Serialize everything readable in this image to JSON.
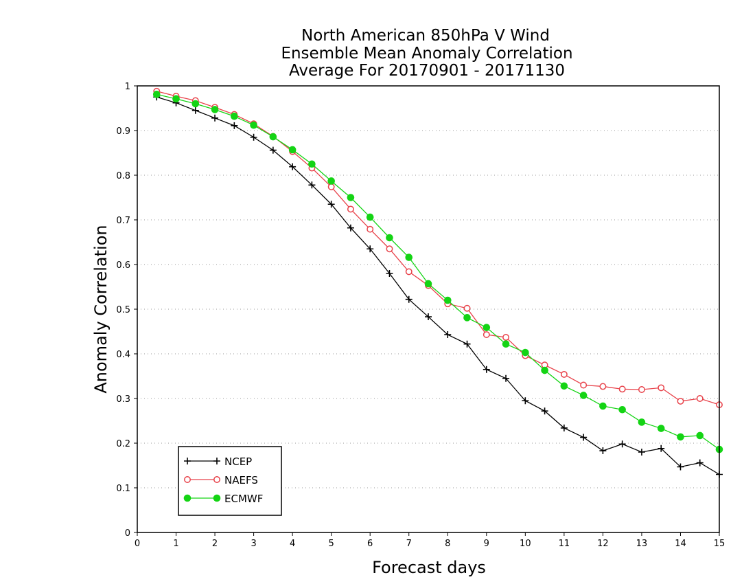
{
  "chart_data": {
    "type": "line",
    "title": [
      "North American 850hPa V Wind",
      "Ensemble Mean Anomaly Correlation",
      "Average For 20170901 - 20171130"
    ],
    "xlabel": "Forecast days",
    "ylabel": "Anomaly Correlation",
    "xlim": [
      0,
      15
    ],
    "ylim": [
      0,
      1
    ],
    "xticks": [
      "0",
      "1",
      "2",
      "3",
      "4",
      "5",
      "6",
      "7",
      "8",
      "9",
      "10",
      "11",
      "12",
      "13",
      "14",
      "15"
    ],
    "yticks": [
      "0",
      "0.1",
      "0.2",
      "0.3",
      "0.4",
      "0.5",
      "0.6",
      "0.7",
      "0.8",
      "0.9",
      "1"
    ],
    "grid": "horizontal dotted",
    "legend_position": "bottom-left",
    "x": [
      0.5,
      1,
      1.5,
      2,
      2.5,
      3,
      3.5,
      4,
      4.5,
      5,
      5.5,
      6,
      6.5,
      7,
      7.5,
      8,
      8.5,
      9,
      9.5,
      10,
      10.5,
      11,
      11.5,
      12,
      12.5,
      13,
      13.5,
      14,
      14.5,
      15
    ],
    "series": [
      {
        "name": "NCEP",
        "color": "#000000",
        "marker": "plus",
        "values": [
          0.975,
          0.962,
          0.945,
          0.928,
          0.911,
          0.885,
          0.856,
          0.819,
          0.778,
          0.735,
          0.682,
          0.635,
          0.58,
          0.522,
          0.483,
          0.443,
          0.422,
          0.365,
          0.345,
          0.295,
          0.272,
          0.234,
          0.213,
          0.183,
          0.198,
          0.18,
          0.188,
          0.147,
          0.156,
          0.13
        ]
      },
      {
        "name": "NAEFS",
        "color": "#e8424a",
        "marker": "open-circle",
        "values": [
          0.988,
          0.977,
          0.967,
          0.952,
          0.936,
          0.915,
          0.887,
          0.853,
          0.816,
          0.774,
          0.724,
          0.679,
          0.635,
          0.584,
          0.553,
          0.512,
          0.502,
          0.443,
          0.437,
          0.396,
          0.375,
          0.354,
          0.33,
          0.327,
          0.321,
          0.32,
          0.324,
          0.294,
          0.3,
          0.286
        ]
      },
      {
        "name": "ECMWF",
        "color": "#14d414",
        "marker": "filled-circle",
        "values": [
          0.981,
          0.971,
          0.96,
          0.947,
          0.932,
          0.912,
          0.886,
          0.857,
          0.825,
          0.787,
          0.75,
          0.706,
          0.66,
          0.616,
          0.557,
          0.52,
          0.481,
          0.459,
          0.422,
          0.403,
          0.363,
          0.328,
          0.307,
          0.283,
          0.275,
          0.247,
          0.233,
          0.214,
          0.217,
          0.186
        ]
      }
    ]
  }
}
